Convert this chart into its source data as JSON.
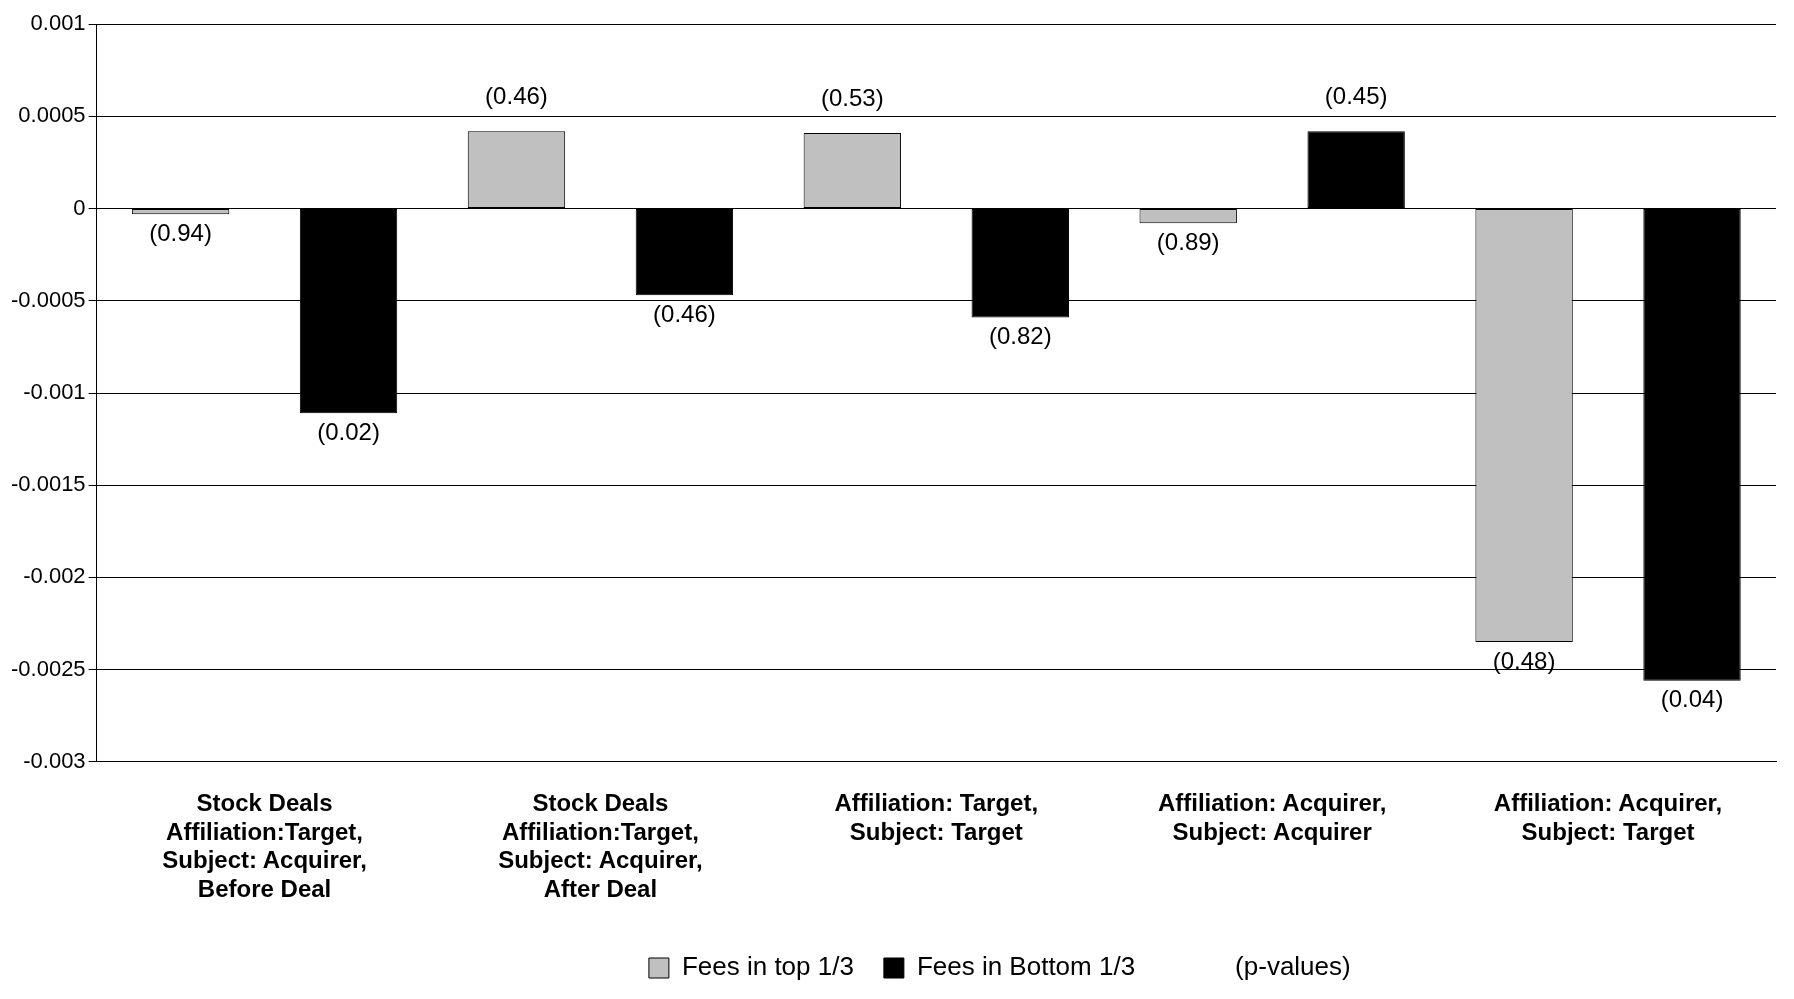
{
  "chart_data": {
    "type": "bar",
    "categories": [
      "Stock Deals\nAffiliation:Target,\nSubject: Acquirer,\nBefore Deal",
      "Stock Deals\nAffiliation:Target,\nSubject: Acquirer,\nAfter Deal",
      "Affiliation: Target,\nSubject: Target",
      "Affiliation: Acquirer,\nSubject: Acquirer",
      "Affiliation: Acquirer,\nSubject: Target"
    ],
    "series": [
      {
        "name": "Fees in top 1/3",
        "color": "#c0c0c0",
        "values": [
          -3e-05,
          0.00042,
          0.00041,
          -8e-05,
          -0.00235
        ]
      },
      {
        "name": "Fees in Bottom 1/3",
        "color": "#000000",
        "values": [
          -0.00111,
          -0.00047,
          -0.00059,
          0.00042,
          -0.00256
        ]
      }
    ],
    "ylim": [
      -0.003,
      0.001
    ],
    "yticks": [
      -0.003,
      -0.0025,
      -0.002,
      -0.0015,
      -0.001,
      -0.0005,
      0,
      0.0005,
      0.001
    ],
    "grid": "y",
    "legend": "bottom",
    "annotations": [
      "(p-values)",
      "(0.94)",
      "(0.46)",
      "(0.53)",
      "(0.89)",
      "(0.48)",
      "(0.02)",
      "(0.46)",
      "(0.82)",
      "(0.45)",
      "(0.04)"
    ]
  }
}
